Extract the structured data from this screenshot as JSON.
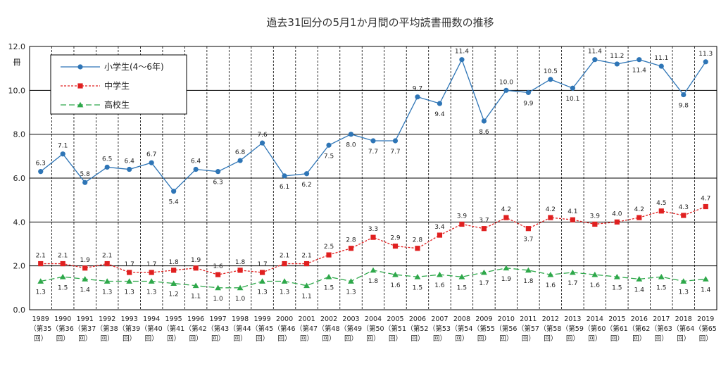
{
  "chart_data": {
    "type": "line",
    "title": "過去31回分の5月1か月間の平均読書冊数の推移",
    "ylabel": "冊",
    "ylim": [
      0,
      12
    ],
    "yticks": [
      "0.0",
      "2.0",
      "4.0",
      "6.0",
      "8.0",
      "10.0",
      "12.0"
    ],
    "grid": true,
    "legend_position": "top-left",
    "categories": [
      "1989",
      "1990",
      "1991",
      "1992",
      "1993",
      "1994",
      "1995",
      "1996",
      "1997",
      "1998",
      "1999",
      "2000",
      "2001",
      "2002",
      "2003",
      "2004",
      "2005",
      "2006",
      "2007",
      "2008",
      "2009",
      "2010",
      "2011",
      "2012",
      "2013",
      "2014",
      "2015",
      "2016",
      "2017",
      "2018",
      "2019"
    ],
    "sub_categories": [
      "（第35",
      "（第36",
      "（第37",
      "（第38",
      "（第39",
      "（第40",
      "（第41",
      "（第42",
      "（第43",
      "（第44",
      "（第45",
      "（第46",
      "（第47",
      "（第48",
      "（第49",
      "（第50",
      "（第51",
      "（第52",
      "（第53",
      "（第54",
      "（第55",
      "（第56",
      "（第57",
      "（第58",
      "（第59",
      "（第60",
      "（第61",
      "（第62",
      "（第63",
      "（第64",
      "（第65"
    ],
    "sub_suffix": "回）",
    "series": [
      {
        "name": "小学生(4〜6年)",
        "color": "#2e75b6",
        "marker": "circle",
        "dash": "none",
        "values": [
          6.3,
          7.1,
          5.8,
          6.5,
          6.4,
          6.7,
          5.4,
          6.4,
          6.3,
          6.8,
          7.6,
          6.1,
          6.2,
          7.5,
          8.0,
          7.7,
          7.7,
          9.7,
          9.4,
          11.4,
          8.6,
          10.0,
          9.9,
          10.5,
          10.1,
          11.4,
          11.2,
          11.4,
          11.1,
          9.8,
          11.3
        ],
        "labels": [
          "6.3",
          "7.1",
          "5.8",
          "6.5",
          "6.4",
          "6.7",
          "5.4",
          "6.4",
          "6.3",
          "6.8",
          "7.6",
          "6.1",
          "6.2",
          "7.5",
          "8.0",
          "7.7",
          "7.7",
          "9.7",
          "9.4",
          "11.4",
          "8.6",
          "10.0",
          "9.9",
          "10.5",
          "10.1",
          "11.4",
          "11.2",
          "11.4",
          "11.1",
          "9.8",
          "11.3"
        ],
        "label_pos": [
          "a",
          "a",
          "a",
          "a",
          "a",
          "a",
          "b",
          "a",
          "b",
          "a",
          "a",
          "b",
          "b",
          "b",
          "b",
          "b",
          "b",
          "a",
          "b",
          "a",
          "b",
          "a",
          "b",
          "a",
          "b",
          "a",
          "a",
          "b",
          "a",
          "b",
          "a"
        ]
      },
      {
        "name": "中学生",
        "color": "#e02020",
        "marker": "square",
        "dash": "3,2",
        "values": [
          2.1,
          2.1,
          1.9,
          2.1,
          1.7,
          1.7,
          1.8,
          1.9,
          1.6,
          1.8,
          1.7,
          2.1,
          2.1,
          2.5,
          2.8,
          3.3,
          2.9,
          2.8,
          3.4,
          3.9,
          3.7,
          4.2,
          3.7,
          4.2,
          4.1,
          3.9,
          4.0,
          4.2,
          4.5,
          4.3,
          4.7
        ],
        "labels": [
          "2.1",
          "2.1",
          "1.9",
          "2.1",
          "1.7",
          "1.7",
          "1.8",
          "1.9",
          "1.6",
          "1.8",
          "1.7",
          "2.1",
          "2.1",
          "2.5",
          "2.8",
          "3.3",
          "2.9",
          "2.8",
          "3.4",
          "3.9",
          "3.7",
          "4.2",
          "3.7",
          "4.2",
          "4.1",
          "3.9",
          "4.0",
          "4.2",
          "4.5",
          "4.3",
          "4.7"
        ],
        "label_pos": [
          "a",
          "a",
          "a",
          "a",
          "a",
          "a",
          "a",
          "a",
          "a",
          "a",
          "a",
          "a",
          "a",
          "a",
          "a",
          "a",
          "a",
          "a",
          "a",
          "a",
          "a",
          "a",
          "b",
          "a",
          "a",
          "a",
          "a",
          "a",
          "a",
          "a",
          "a"
        ]
      },
      {
        "name": "高校生",
        "color": "#2ea84a",
        "marker": "triangle",
        "dash": "8,4",
        "values": [
          1.3,
          1.5,
          1.4,
          1.3,
          1.3,
          1.3,
          1.2,
          1.1,
          1.0,
          1.0,
          1.3,
          1.3,
          1.1,
          1.5,
          1.3,
          1.8,
          1.6,
          1.5,
          1.6,
          1.5,
          1.7,
          1.9,
          1.8,
          1.6,
          1.7,
          1.6,
          1.5,
          1.4,
          1.5,
          1.3,
          1.4
        ],
        "labels": [
          "1.3",
          "1.5",
          "1.4",
          "1.3",
          "1.3",
          "1.3",
          "1.2",
          "1.1",
          "1.0",
          "1.0",
          "1.3",
          "1.3",
          "1.1",
          "1.5",
          "1.3",
          "1.8",
          "1.6",
          "1.5",
          "1.6",
          "1.5",
          "1.7",
          "1.9",
          "1.8",
          "1.6",
          "1.7",
          "1.6",
          "1.5",
          "1.4",
          "1.5",
          "1.3",
          "1.4"
        ],
        "label_pos": [
          "b",
          "b",
          "b",
          "b",
          "b",
          "b",
          "b",
          "b",
          "b",
          "b",
          "b",
          "b",
          "b",
          "b",
          "b",
          "b",
          "b",
          "b",
          "b",
          "b",
          "b",
          "b",
          "b",
          "b",
          "b",
          "b",
          "b",
          "b",
          "b",
          "b",
          "b"
        ]
      }
    ]
  }
}
